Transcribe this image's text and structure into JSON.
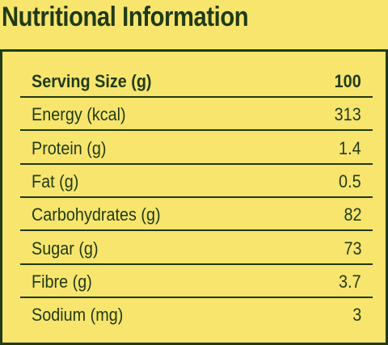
{
  "title": "Nutritional Information",
  "table": {
    "header": [
      "Serving Size (g)",
      "100"
    ],
    "rows": [
      [
        "Energy (kcal)",
        "313"
      ],
      [
        "Protein (g)",
        "1.4"
      ],
      [
        "Fat (g)",
        "0.5"
      ],
      [
        "Carbohydrates (g)",
        "82"
      ],
      [
        "Sugar (g)",
        "73"
      ],
      [
        "Fibre (g)",
        "3.7"
      ],
      [
        "Sodium (mg)",
        "3"
      ]
    ]
  }
}
